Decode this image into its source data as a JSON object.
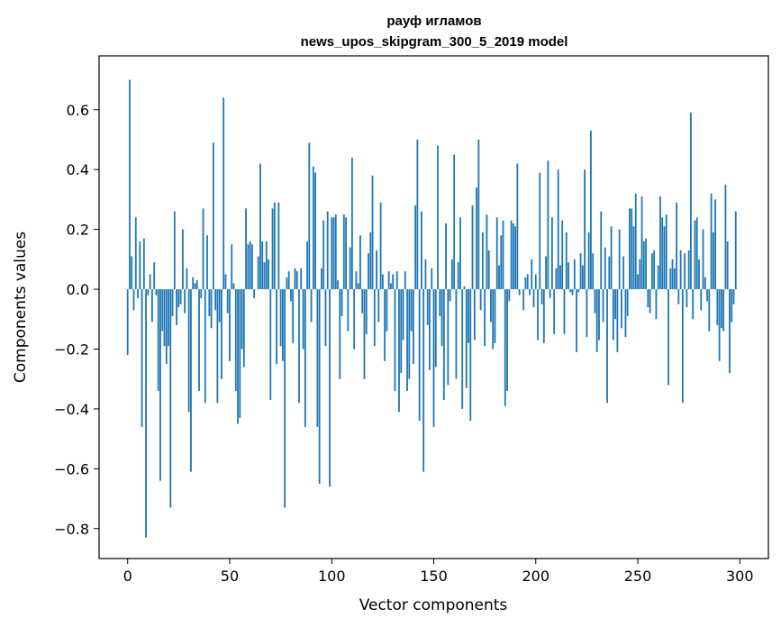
{
  "chart_data": {
    "type": "bar",
    "title": [
      "рауф игламов",
      "news_upos_skipgram_300_5_2019 model"
    ],
    "xlabel": "Vector components",
    "ylabel": "Components values",
    "xlim": [
      -14,
      314
    ],
    "ylim": [
      -0.9,
      0.78
    ],
    "xticks": [
      0,
      50,
      100,
      150,
      200,
      250,
      300
    ],
    "xtick_labels": [
      "0",
      "50",
      "100",
      "150",
      "200",
      "250",
      "300"
    ],
    "yticks": [
      -0.8,
      -0.6,
      -0.4,
      -0.2,
      0.0,
      0.2,
      0.4,
      0.6
    ],
    "ytick_labels": [
      "−0.8",
      "−0.6",
      "−0.4",
      "−0.2",
      "0.0",
      "0.2",
      "0.4",
      "0.6"
    ],
    "bar_color": "#1f77b4",
    "series": [
      {
        "name": "components",
        "values": [
          -0.22,
          0.7,
          0.11,
          -0.07,
          0.24,
          -0.03,
          0.16,
          -0.46,
          0.17,
          -0.83,
          -0.02,
          0.05,
          -0.11,
          0.09,
          -0.02,
          -0.34,
          -0.64,
          -0.14,
          -0.19,
          -0.25,
          -0.19,
          -0.73,
          -0.09,
          0.26,
          -0.12,
          -0.06,
          -0.05,
          0.2,
          -0.08,
          0.07,
          -0.41,
          -0.61,
          0.04,
          0.02,
          0.03,
          -0.34,
          -0.03,
          0.27,
          -0.38,
          0.18,
          -0.09,
          -0.13,
          0.49,
          -0.07,
          -0.38,
          -0.11,
          -0.3,
          0.64,
          0.05,
          -0.08,
          -0.24,
          0.15,
          0.02,
          -0.34,
          -0.45,
          -0.43,
          -0.2,
          -0.26,
          0.27,
          0.15,
          0.16,
          0.15,
          -0.03,
          0.0,
          0.11,
          0.42,
          0.16,
          0.09,
          0.16,
          0.1,
          -0.37,
          0.27,
          0.29,
          -0.25,
          0.29,
          -0.19,
          -0.24,
          -0.73,
          0.04,
          0.06,
          -0.04,
          -0.18,
          0.07,
          0.06,
          -0.38,
          0.07,
          -0.2,
          -0.46,
          0.16,
          0.49,
          -0.11,
          0.41,
          0.39,
          -0.46,
          -0.65,
          0.07,
          0.23,
          -0.19,
          0.26,
          -0.66,
          0.24,
          0.24,
          0.25,
          0.03,
          -0.3,
          -0.09,
          0.25,
          0.24,
          -0.14,
          0.14,
          0.44,
          -0.2,
          0.06,
          0.02,
          0.18,
          -0.08,
          -0.3,
          -0.15,
          0.12,
          0.19,
          0.38,
          -0.19,
          0.13,
          -0.11,
          0.29,
          0.05,
          -0.24,
          -0.14,
          0.06,
          0.02,
          0.05,
          -0.34,
          0.06,
          -0.41,
          -0.28,
          -0.17,
          0.06,
          -0.34,
          -0.3,
          -0.14,
          -0.25,
          0.28,
          0.5,
          -0.44,
          0.26,
          -0.61,
          0.1,
          -0.12,
          -0.27,
          0.07,
          -0.46,
          -0.26,
          0.48,
          -0.09,
          -0.19,
          -0.37,
          0.22,
          -0.32,
          -0.04,
          0.1,
          0.45,
          -0.3,
          0.09,
          0.24,
          -0.4,
          0.01,
          -0.33,
          -0.18,
          -0.44,
          0.28,
          -0.17,
          0.34,
          0.5,
          -0.07,
          0.19,
          -0.19,
          0.25,
          0.13,
          -0.11,
          -0.2,
          -0.18,
          0.24,
          0.08,
          0.18,
          0.23,
          -0.39,
          -0.34,
          -0.04,
          0.23,
          0.22,
          0.21,
          0.42,
          -0.02,
          0.0,
          -0.07,
          0.04,
          0.05,
          -0.02,
          0.1,
          -0.06,
          0.05,
          -0.17,
          0.39,
          -0.05,
          -0.18,
          0.11,
          0.43,
          -0.03,
          0.24,
          -0.15,
          0.07,
          0.4,
          0.08,
          0.23,
          -0.15,
          0.19,
          0.09,
          -0.01,
          -0.02,
          0.1,
          -0.21,
          -0.01,
          0.12,
          0.08,
          0.4,
          -0.16,
          0.19,
          0.53,
          0.12,
          -0.08,
          -0.21,
          -0.17,
          0.26,
          -0.11,
          0.14,
          -0.38,
          0.11,
          0.21,
          -0.17,
          -0.1,
          -0.21,
          0.2,
          -0.13,
          0.11,
          -0.16,
          -0.09,
          0.27,
          0.27,
          0.21,
          0.32,
          0.05,
          0.1,
          0.31,
          0.16,
          0.17,
          -0.06,
          -0.08,
          0.12,
          0.13,
          -0.1,
          0.08,
          0.31,
          0.24,
          0.21,
          0.25,
          -0.32,
          0.07,
          0.1,
          0.07,
          0.29,
          -0.05,
          0.13,
          -0.38,
          0.12,
          -0.06,
          0.13,
          0.59,
          -0.1,
          0.23,
          0.24,
          0.1,
          -0.07,
          0.2,
          0.04,
          -0.04,
          -0.14,
          0.32,
          0.19,
          0.3,
          -0.12,
          -0.24,
          -0.13,
          -0.14,
          0.35,
          0.16,
          -0.28,
          -0.11,
          -0.05,
          0.26
        ]
      }
    ]
  }
}
